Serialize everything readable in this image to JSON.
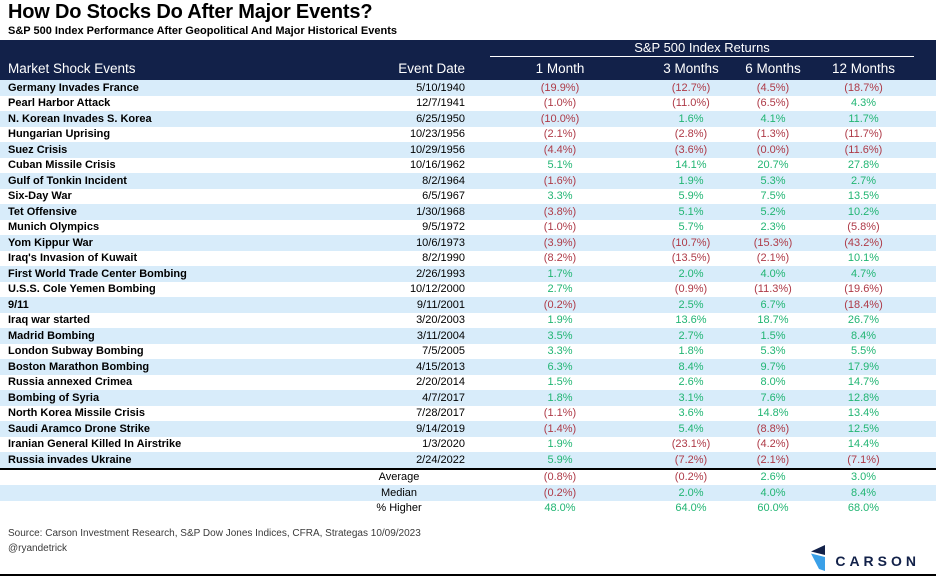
{
  "chart_data": {
    "type": "table",
    "title": "How Do Stocks Do After Major Events?",
    "subtitle": "S&P 500 Index Performance After Geopolitical And Major Historical Events",
    "group_header": "S&P 500 Index Returns",
    "columns": [
      "Market Shock Events",
      "Event Date",
      "1 Month",
      "3 Months",
      "6 Months",
      "12 Months"
    ],
    "rows": [
      {
        "event": "Germany Invades France",
        "date": "5/10/1940",
        "returns": [
          "(19.9%)",
          "(12.7%)",
          "(4.5%)",
          "(18.7%)"
        ]
      },
      {
        "event": "Pearl Harbor Attack",
        "date": "12/7/1941",
        "returns": [
          "(1.0%)",
          "(11.0%)",
          "(6.5%)",
          "4.3%"
        ]
      },
      {
        "event": "N. Korean Invades S. Korea",
        "date": "6/25/1950",
        "returns": [
          "(10.0%)",
          "1.6%",
          "4.1%",
          "11.7%"
        ]
      },
      {
        "event": "Hungarian Uprising",
        "date": "10/23/1956",
        "returns": [
          "(2.1%)",
          "(2.8%)",
          "(1.3%)",
          "(11.7%)"
        ]
      },
      {
        "event": "Suez Crisis",
        "date": "10/29/1956",
        "returns": [
          "(4.4%)",
          "(3.6%)",
          "(0.0%)",
          "(11.6%)"
        ]
      },
      {
        "event": "Cuban Missile Crisis",
        "date": "10/16/1962",
        "returns": [
          "5.1%",
          "14.1%",
          "20.7%",
          "27.8%"
        ]
      },
      {
        "event": "Gulf of Tonkin Incident",
        "date": "8/2/1964",
        "returns": [
          "(1.6%)",
          "1.9%",
          "5.3%",
          "2.7%"
        ]
      },
      {
        "event": "Six-Day War",
        "date": "6/5/1967",
        "returns": [
          "3.3%",
          "5.9%",
          "7.5%",
          "13.5%"
        ]
      },
      {
        "event": "Tet Offensive",
        "date": "1/30/1968",
        "returns": [
          "(3.8%)",
          "5.1%",
          "5.2%",
          "10.2%"
        ]
      },
      {
        "event": "Munich Olympics",
        "date": "9/5/1972",
        "returns": [
          "(1.0%)",
          "5.7%",
          "2.3%",
          "(5.8%)"
        ]
      },
      {
        "event": "Yom Kippur War",
        "date": "10/6/1973",
        "returns": [
          "(3.9%)",
          "(10.7%)",
          "(15.3%)",
          "(43.2%)"
        ]
      },
      {
        "event": "Iraq's Invasion of Kuwait",
        "date": "8/2/1990",
        "returns": [
          "(8.2%)",
          "(13.5%)",
          "(2.1%)",
          "10.1%"
        ]
      },
      {
        "event": "First World Trade Center Bombing",
        "date": "2/26/1993",
        "returns": [
          "1.7%",
          "2.0%",
          "4.0%",
          "4.7%"
        ]
      },
      {
        "event": "U.S.S. Cole Yemen Bombing",
        "date": "10/12/2000",
        "returns": [
          "2.7%",
          "(0.9%)",
          "(11.3%)",
          "(19.6%)"
        ]
      },
      {
        "event": "9/11",
        "date": "9/11/2001",
        "returns": [
          "(0.2%)",
          "2.5%",
          "6.7%",
          "(18.4%)"
        ]
      },
      {
        "event": "Iraq war started",
        "date": "3/20/2003",
        "returns": [
          "1.9%",
          "13.6%",
          "18.7%",
          "26.7%"
        ]
      },
      {
        "event": "Madrid Bombing",
        "date": "3/11/2004",
        "returns": [
          "3.5%",
          "2.7%",
          "1.5%",
          "8.4%"
        ]
      },
      {
        "event": "London Subway Bombing",
        "date": "7/5/2005",
        "returns": [
          "3.3%",
          "1.8%",
          "5.3%",
          "5.5%"
        ]
      },
      {
        "event": "Boston Marathon Bombing",
        "date": "4/15/2013",
        "returns": [
          "6.3%",
          "8.4%",
          "9.7%",
          "17.9%"
        ]
      },
      {
        "event": "Russia annexed Crimea",
        "date": "2/20/2014",
        "returns": [
          "1.5%",
          "2.6%",
          "8.0%",
          "14.7%"
        ]
      },
      {
        "event": "Bombing of Syria",
        "date": "4/7/2017",
        "returns": [
          "1.8%",
          "3.1%",
          "7.6%",
          "12.8%"
        ]
      },
      {
        "event": "North Korea Missile Crisis",
        "date": "7/28/2017",
        "returns": [
          "(1.1%)",
          "3.6%",
          "14.8%",
          "13.4%"
        ]
      },
      {
        "event": "Saudi Aramco Drone Strike",
        "date": "9/14/2019",
        "returns": [
          "(1.4%)",
          "5.4%",
          "(8.8%)",
          "12.5%"
        ]
      },
      {
        "event": "Iranian General Killed In Airstrike",
        "date": "1/3/2020",
        "returns": [
          "1.9%",
          "(23.1%)",
          "(4.2%)",
          "14.4%"
        ]
      },
      {
        "event": "Russia invades Ukraine",
        "date": "2/24/2022",
        "returns": [
          "5.9%",
          "(7.2%)",
          "(2.1%)",
          "(7.1%)"
        ]
      }
    ],
    "summary": [
      {
        "label": "Average",
        "returns": [
          "(0.8%)",
          "(0.2%)",
          "2.6%",
          "3.0%"
        ]
      },
      {
        "label": "Median",
        "returns": [
          "(0.2%)",
          "2.0%",
          "4.0%",
          "8.4%"
        ]
      },
      {
        "label": "% Higher",
        "returns": [
          "48.0%",
          "64.0%",
          "60.0%",
          "68.0%"
        ]
      }
    ]
  },
  "footer": {
    "source": "Source: Carson Investment Research, S&P Dow Jones Indices, CFRA, Strategas 10/09/2023",
    "handle": "@ryandetrick",
    "logo_text": "CARSON"
  },
  "colors": {
    "navy": "#122149",
    "stripe": "#d8ecfa",
    "positive": "#21b573",
    "negative": "#ae3a47",
    "logo_blue": "#3aa0e8"
  }
}
